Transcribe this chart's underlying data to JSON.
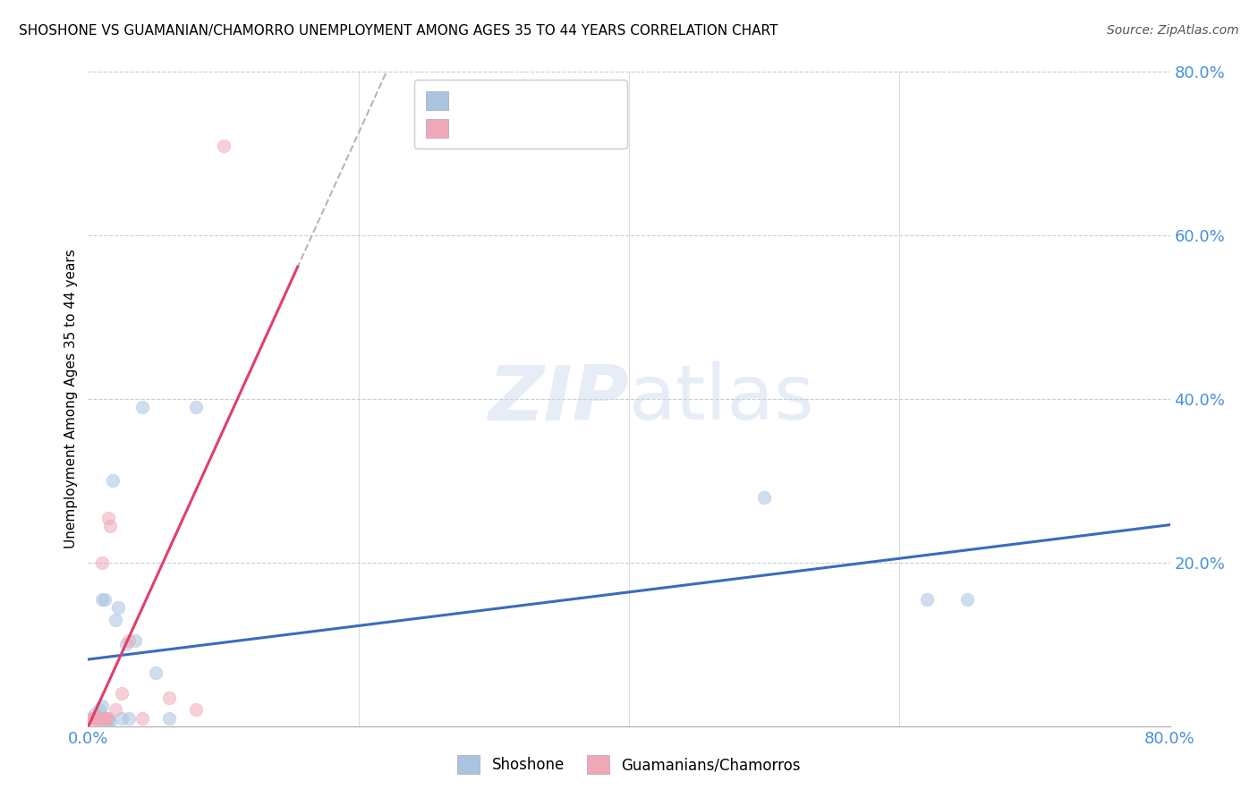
{
  "title": "SHOSHONE VS GUAMANIAN/CHAMORRO UNEMPLOYMENT AMONG AGES 35 TO 44 YEARS CORRELATION CHART",
  "source": "Source: ZipAtlas.com",
  "ylabel": "Unemployment Among Ages 35 to 44 years",
  "xlim": [
    0.0,
    0.8
  ],
  "ylim": [
    0.0,
    0.8
  ],
  "right_yticks": [
    0.2,
    0.4,
    0.6,
    0.8
  ],
  "right_yticklabels": [
    "20.0%",
    "40.0%",
    "60.0%",
    "80.0%"
  ],
  "grid_yticks": [
    0.2,
    0.4,
    0.6,
    0.8
  ],
  "watermark_zip": "ZIP",
  "watermark_atlas": "atlas",
  "shoshone_color": "#a8c4e0",
  "guamanian_color": "#f0a8b8",
  "shoshone_edge": "#7aaace",
  "guamanian_edge": "#e080a0",
  "trend_shoshone_color": "#3a6bbf",
  "trend_guamanian_color": "#e0406a",
  "trend_guamanian_dashed_color": "#c0b0b8",
  "shoshone_x": [
    0.003,
    0.005,
    0.007,
    0.008,
    0.009,
    0.01,
    0.01,
    0.011,
    0.012,
    0.013,
    0.014,
    0.015,
    0.016,
    0.018,
    0.02,
    0.022,
    0.025,
    0.028,
    0.03,
    0.035,
    0.04,
    0.05,
    0.06,
    0.08,
    0.5,
    0.62,
    0.65
  ],
  "shoshone_y": [
    0.01,
    0.015,
    0.01,
    0.02,
    0.005,
    0.025,
    0.155,
    0.01,
    0.155,
    0.01,
    0.005,
    0.01,
    0.005,
    0.3,
    0.13,
    0.145,
    0.01,
    0.1,
    0.01,
    0.105,
    0.39,
    0.065,
    0.01,
    0.39,
    0.28,
    0.155,
    0.155
  ],
  "guamanian_x": [
    0.003,
    0.004,
    0.005,
    0.006,
    0.007,
    0.008,
    0.009,
    0.01,
    0.011,
    0.012,
    0.013,
    0.014,
    0.015,
    0.016,
    0.02,
    0.025,
    0.03,
    0.04,
    0.06,
    0.08,
    0.1
  ],
  "guamanian_y": [
    0.01,
    0.01,
    0.01,
    0.01,
    0.01,
    0.01,
    0.01,
    0.2,
    0.01,
    0.01,
    0.01,
    0.01,
    0.255,
    0.245,
    0.02,
    0.04,
    0.105,
    0.01,
    0.035,
    0.02,
    0.71
  ],
  "scatter_size": 110,
  "scatter_alpha": 0.55,
  "tick_color": "#4a90d9",
  "tick_fontsize": 13,
  "legend_fontsize": 13,
  "title_fontsize": 11,
  "ylabel_fontsize": 11,
  "source_fontsize": 10,
  "blue_text_color": "#4a90d9",
  "dark_text_color": "#444444"
}
